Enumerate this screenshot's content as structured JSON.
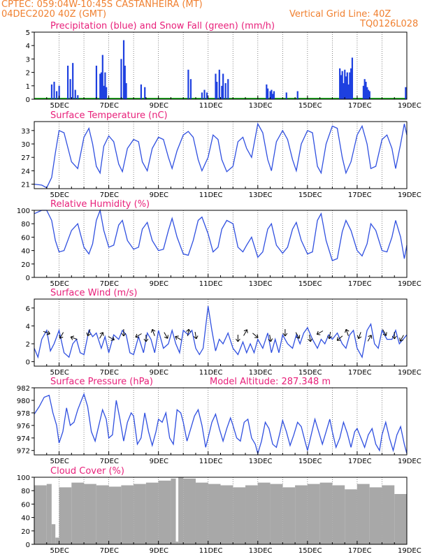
{
  "header": {
    "left1": "CPTEC:   059:04W-10:45S   CASTANHEIRA (MT)",
    "left2": "04DEC2020 40Z (GMT)",
    "right1": "Vertical Grid Line: 40Z",
    "right2": "TQ0126L028"
  },
  "x_tick_labels": [
    "5DEC",
    "7DEC",
    "9DEC",
    "11DEC",
    "13DEC",
    "15DEC",
    "17DEC",
    "19DEC"
  ],
  "colors": {
    "line": "#3050e0",
    "bar": "#1e40e0",
    "snow": "#20b020",
    "cloud": "#a8a8a8",
    "title": "#e8207a",
    "header": "#f08030"
  },
  "chart_data": [
    {
      "type": "bar",
      "title": "Precipitation (blue) and Snow Fall (green) (mm/h)",
      "ylim": [
        0,
        5
      ],
      "yticks": [
        "0",
        "1",
        "2",
        "3",
        "4",
        "5"
      ],
      "x": [
        4.7,
        4.8,
        4.9,
        5.0,
        5.35,
        5.45,
        5.55,
        5.65,
        5.75,
        6.5,
        6.65,
        6.7,
        6.75,
        6.8,
        6.85,
        6.9,
        7.5,
        7.6,
        7.65,
        7.7,
        8.3,
        8.45,
        10.2,
        10.3,
        10.75,
        10.85,
        10.95,
        11.3,
        11.35,
        11.45,
        11.55,
        11.6,
        11.7,
        11.8,
        13.35,
        13.4,
        13.5,
        13.55,
        13.6,
        13.65,
        14.15,
        14.6,
        16.3,
        16.35,
        16.4,
        16.45,
        16.5,
        16.55,
        16.6,
        16.65,
        16.7,
        16.75,
        16.8,
        17.25,
        17.3,
        17.35,
        17.4,
        17.45,
        17.5,
        18.95
      ],
      "values": [
        1.1,
        1.3,
        0.6,
        1.0,
        2.5,
        1.5,
        2.7,
        0.7,
        0.3,
        2.5,
        1.9,
        2.0,
        3.3,
        1.0,
        2.0,
        0.9,
        3.0,
        4.4,
        2.5,
        1.2,
        1.1,
        0.9,
        2.2,
        1.5,
        0.5,
        0.7,
        0.5,
        1.9,
        1.3,
        2.2,
        1.0,
        1.9,
        1.2,
        1.5,
        1.1,
        0.8,
        0.6,
        0.7,
        0.4,
        0.6,
        0.5,
        0.6,
        2.3,
        1.8,
        2.1,
        1.2,
        2.2,
        1.7,
        2.0,
        1.1,
        2.0,
        2.3,
        3.1,
        1.0,
        1.5,
        1.3,
        0.9,
        0.7,
        0.6,
        0.9
      ],
      "snow": 0,
      "xlim": [
        4.0,
        19.0
      ]
    },
    {
      "type": "line",
      "title": "Surface Temperature (nC)",
      "ylim": [
        20,
        35
      ],
      "yticks": [
        "21",
        "24",
        "27",
        "30",
        "33"
      ],
      "x": [
        4.0,
        4.3,
        4.5,
        4.7,
        4.85,
        5.0,
        5.2,
        5.5,
        5.75,
        6.0,
        6.2,
        6.35,
        6.5,
        6.65,
        6.8,
        7.0,
        7.2,
        7.4,
        7.55,
        7.75,
        8.0,
        8.2,
        8.35,
        8.55,
        8.75,
        9.0,
        9.2,
        9.4,
        9.55,
        9.75,
        10.0,
        10.2,
        10.4,
        10.6,
        10.75,
        11.0,
        11.2,
        11.4,
        11.55,
        11.75,
        12.0,
        12.2,
        12.4,
        12.55,
        12.75,
        13.0,
        13.2,
        13.4,
        13.55,
        13.75,
        14.0,
        14.2,
        14.4,
        14.55,
        14.75,
        15.0,
        15.2,
        15.4,
        15.55,
        15.75,
        16.0,
        16.2,
        16.4,
        16.55,
        16.75,
        17.0,
        17.2,
        17.4,
        17.55,
        17.75,
        18.0,
        18.2,
        18.4,
        18.55,
        18.75,
        18.9,
        19.0
      ],
      "values": [
        21.0,
        20.8,
        20.2,
        22.5,
        28.0,
        33.0,
        32.5,
        26.0,
        24.5,
        31.5,
        33.5,
        30.0,
        25.0,
        23.5,
        29.5,
        31.8,
        30.5,
        25.5,
        23.8,
        29.0,
        31.0,
        30.5,
        26.0,
        24.0,
        29.0,
        31.5,
        31.0,
        27.0,
        24.5,
        28.5,
        32.0,
        32.8,
        31.5,
        26.5,
        24.0,
        27.0,
        32.0,
        31.0,
        26.5,
        23.8,
        25.0,
        30.5,
        31.5,
        29.0,
        27.0,
        34.5,
        32.5,
        26.5,
        24.0,
        30.5,
        33.0,
        31.0,
        26.5,
        24.0,
        30.0,
        33.0,
        32.5,
        25.0,
        23.5,
        30.0,
        34.0,
        33.5,
        27.0,
        23.5,
        26.0,
        32.0,
        34.0,
        30.0,
        24.5,
        25.0,
        31.0,
        32.0,
        29.0,
        24.5,
        30.0,
        34.5,
        32.0
      ],
      "xlim": [
        4.0,
        19.0
      ]
    },
    {
      "type": "line",
      "title": "Relative Humidity (%)",
      "ylim": [
        0,
        100
      ],
      "yticks": [
        "0",
        "20",
        "40",
        "60",
        "80",
        "100"
      ],
      "x": [
        4.0,
        4.3,
        4.5,
        4.7,
        4.85,
        5.0,
        5.2,
        5.5,
        5.75,
        6.0,
        6.2,
        6.35,
        6.5,
        6.65,
        6.8,
        7.0,
        7.2,
        7.4,
        7.55,
        7.75,
        8.0,
        8.2,
        8.35,
        8.55,
        8.75,
        9.0,
        9.2,
        9.4,
        9.55,
        9.75,
        10.0,
        10.2,
        10.4,
        10.6,
        10.75,
        11.0,
        11.2,
        11.4,
        11.55,
        11.75,
        12.0,
        12.2,
        12.4,
        12.55,
        12.75,
        13.0,
        13.2,
        13.4,
        13.55,
        13.75,
        14.0,
        14.2,
        14.4,
        14.55,
        14.75,
        15.0,
        15.2,
        15.4,
        15.55,
        15.75,
        16.0,
        16.2,
        16.4,
        16.55,
        16.75,
        17.0,
        17.2,
        17.4,
        17.55,
        17.75,
        18.0,
        18.2,
        18.4,
        18.55,
        18.75,
        18.9,
        19.0
      ],
      "values": [
        95,
        100,
        100,
        85,
        55,
        38,
        40,
        70,
        80,
        45,
        35,
        50,
        85,
        100,
        70,
        45,
        48,
        78,
        85,
        55,
        42,
        45,
        72,
        82,
        55,
        40,
        42,
        70,
        88,
        60,
        35,
        33,
        55,
        85,
        90,
        65,
        38,
        45,
        72,
        85,
        80,
        45,
        38,
        48,
        60,
        30,
        38,
        72,
        80,
        48,
        36,
        45,
        72,
        82,
        55,
        35,
        38,
        85,
        95,
        55,
        25,
        28,
        68,
        85,
        70,
        40,
        32,
        50,
        80,
        70,
        40,
        38,
        60,
        85,
        60,
        28,
        48
      ],
      "xlim": [
        4.0,
        19.0
      ]
    },
    {
      "type": "line",
      "title": "Surface Wind (m/s)",
      "ylim": [
        -0.5,
        7
      ],
      "yticks": [
        "0",
        "2",
        "4",
        "6"
      ],
      "x": [
        4.0,
        4.15,
        4.3,
        4.5,
        4.65,
        4.8,
        5.0,
        5.2,
        5.4,
        5.55,
        5.7,
        5.85,
        6.0,
        6.2,
        6.35,
        6.5,
        6.7,
        6.85,
        7.0,
        7.2,
        7.4,
        7.55,
        7.7,
        7.85,
        8.0,
        8.2,
        8.4,
        8.55,
        8.7,
        8.85,
        9.0,
        9.2,
        9.4,
        9.55,
        9.7,
        9.85,
        10.0,
        10.2,
        10.35,
        10.5,
        10.65,
        10.8,
        11.0,
        11.15,
        11.3,
        11.45,
        11.6,
        11.8,
        12.0,
        12.2,
        12.4,
        12.55,
        12.7,
        12.85,
        13.0,
        13.2,
        13.4,
        13.55,
        13.7,
        13.85,
        14.0,
        14.2,
        14.4,
        14.55,
        14.7,
        14.85,
        15.0,
        15.2,
        15.4,
        15.55,
        15.7,
        15.85,
        16.0,
        16.2,
        16.4,
        16.55,
        16.7,
        16.85,
        17.0,
        17.2,
        17.4,
        17.55,
        17.7,
        17.85,
        18.0,
        18.2,
        18.4,
        18.55,
        18.7,
        18.85,
        19.0
      ],
      "values": [
        1.5,
        0.5,
        2.5,
        3.5,
        1.2,
        2.0,
        3.5,
        1.0,
        0.5,
        2.0,
        2.5,
        1.0,
        0.8,
        3.5,
        2.8,
        3.2,
        1.5,
        2.8,
        1.0,
        3.0,
        2.5,
        3.5,
        3.0,
        1.0,
        0.8,
        2.8,
        1.0,
        3.2,
        2.5,
        1.0,
        3.5,
        1.5,
        2.0,
        3.5,
        2.0,
        1.0,
        3.5,
        3.0,
        3.5,
        1.5,
        0.8,
        1.5,
        6.2,
        3.5,
        1.2,
        2.5,
        2.0,
        3.2,
        1.5,
        0.8,
        2.2,
        1.0,
        2.0,
        1.0,
        2.5,
        1.5,
        3.2,
        1.0,
        2.5,
        1.0,
        3.0,
        2.0,
        1.5,
        3.0,
        2.0,
        3.2,
        3.8,
        2.5,
        1.5,
        2.5,
        2.0,
        3.0,
        2.5,
        3.2,
        2.0,
        1.5,
        3.0,
        3.5,
        1.5,
        0.5,
        3.5,
        4.2,
        2.0,
        1.5,
        3.5,
        2.5,
        2.5,
        3.5,
        2.0,
        2.5,
        3.0
      ],
      "xlim": [
        4.0,
        19.0
      ]
    },
    {
      "type": "line",
      "title": "Surface Pressure (hPa)",
      "subtitle": "Model Altitude: 287.348 m",
      "ylim": [
        971.3,
        982
      ],
      "yticks": [
        "972",
        "974",
        "976",
        "978",
        "980",
        "982"
      ],
      "x": [
        4.0,
        4.2,
        4.4,
        4.6,
        4.75,
        4.9,
        5.0,
        5.15,
        5.3,
        5.45,
        5.6,
        5.75,
        5.9,
        6.0,
        6.15,
        6.3,
        6.45,
        6.6,
        6.75,
        6.9,
        7.0,
        7.15,
        7.3,
        7.45,
        7.6,
        7.75,
        7.9,
        8.0,
        8.15,
        8.3,
        8.45,
        8.6,
        8.75,
        8.9,
        9.0,
        9.15,
        9.3,
        9.45,
        9.6,
        9.75,
        9.9,
        10.0,
        10.15,
        10.3,
        10.45,
        10.6,
        10.75,
        10.9,
        11.0,
        11.15,
        11.3,
        11.45,
        11.6,
        11.75,
        11.9,
        12.0,
        12.15,
        12.3,
        12.45,
        12.6,
        12.75,
        12.9,
        13.0,
        13.15,
        13.3,
        13.45,
        13.6,
        13.75,
        13.9,
        14.0,
        14.15,
        14.3,
        14.45,
        14.6,
        14.75,
        14.9,
        15.0,
        15.15,
        15.3,
        15.45,
        15.6,
        15.75,
        15.9,
        16.0,
        16.15,
        16.3,
        16.45,
        16.6,
        16.75,
        16.9,
        17.0,
        17.15,
        17.3,
        17.45,
        17.6,
        17.75,
        17.9,
        18.0,
        18.15,
        18.3,
        18.45,
        18.6,
        18.75,
        18.9,
        19.0
      ],
      "values": [
        977.8,
        979.0,
        980.5,
        980.8,
        978.0,
        976.0,
        973.2,
        975.0,
        978.8,
        976.0,
        976.5,
        978.5,
        980.0,
        981.0,
        979.0,
        975.0,
        973.5,
        976.0,
        978.5,
        977.0,
        974.0,
        974.5,
        980.0,
        977.0,
        973.5,
        976.5,
        978.0,
        977.5,
        973.0,
        974.0,
        978.0,
        975.0,
        972.8,
        975.0,
        977.0,
        976.5,
        978.0,
        974.0,
        973.0,
        978.5,
        978.0,
        976.5,
        973.5,
        975.5,
        977.5,
        978.5,
        976.0,
        972.5,
        974.0,
        976.5,
        977.8,
        975.5,
        973.5,
        975.5,
        977.2,
        976.0,
        974.0,
        973.5,
        976.5,
        977.0,
        974.0,
        973.0,
        971.5,
        973.5,
        976.5,
        975.5,
        973.0,
        972.5,
        975.0,
        976.8,
        975.0,
        972.8,
        974.5,
        976.5,
        975.8,
        973.5,
        972.0,
        974.5,
        977.0,
        975.0,
        973.0,
        975.0,
        977.0,
        975.0,
        972.5,
        974.0,
        976.5,
        974.8,
        972.5,
        975.0,
        975.5,
        974.0,
        972.5,
        974.5,
        975.5,
        973.0,
        972.0,
        974.5,
        976.5,
        974.0,
        972.0,
        974.5,
        975.8,
        973.0,
        971.5
      ],
      "xlim": [
        4.0,
        19.0
      ]
    },
    {
      "type": "area",
      "title": "Cloud Cover (%)",
      "ylim": [
        0,
        100
      ],
      "yticks": [
        "0",
        "20",
        "40",
        "60",
        "80",
        "100"
      ],
      "x": [
        4.0,
        4.5,
        4.7,
        4.85,
        5.0,
        5.5,
        6.0,
        6.5,
        7.0,
        7.5,
        8.0,
        8.5,
        9.0,
        9.5,
        9.7,
        9.8,
        10.0,
        10.5,
        11.0,
        11.5,
        12.0,
        12.5,
        13.0,
        13.5,
        14.0,
        14.5,
        15.0,
        15.5,
        16.0,
        16.5,
        17.0,
        17.5,
        18.0,
        18.5,
        19.0
      ],
      "values": [
        88,
        90,
        30,
        10,
        85,
        92,
        90,
        88,
        86,
        88,
        90,
        92,
        95,
        98,
        4,
        100,
        98,
        92,
        90,
        88,
        85,
        88,
        92,
        90,
        85,
        88,
        90,
        92,
        88,
        82,
        90,
        85,
        88,
        75,
        90
      ],
      "xlim": [
        4.0,
        19.0
      ]
    }
  ]
}
